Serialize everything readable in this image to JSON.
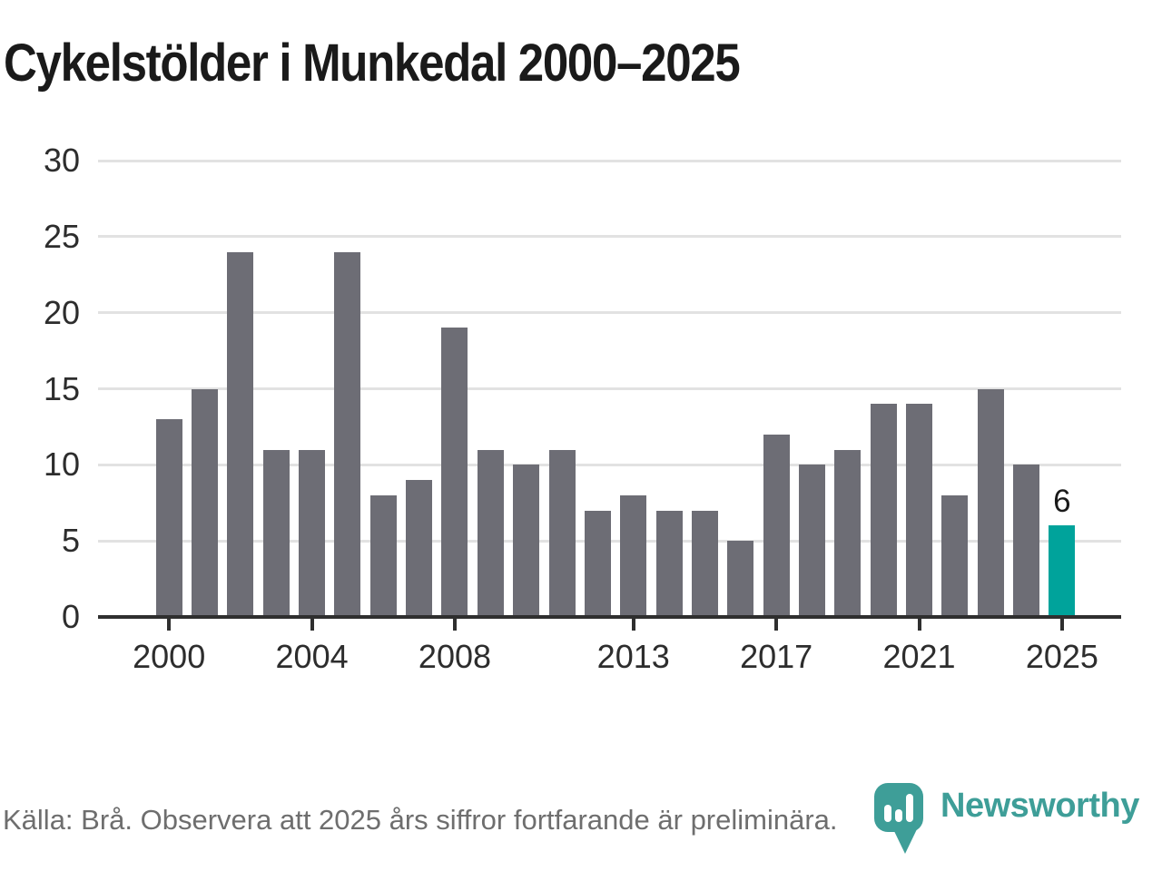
{
  "title": "Cykelstölder i Munkedal 2000–2025",
  "chart_data": {
    "type": "bar",
    "title": "Cykelstölder i Munkedal 2000–2025",
    "categories": [
      2000,
      2001,
      2002,
      2003,
      2004,
      2005,
      2006,
      2007,
      2008,
      2009,
      2010,
      2011,
      2012,
      2013,
      2014,
      2015,
      2016,
      2017,
      2018,
      2019,
      2020,
      2021,
      2022,
      2023,
      2024,
      2025
    ],
    "values": [
      13,
      15,
      24,
      11,
      11,
      24,
      8,
      9,
      19,
      11,
      10,
      11,
      7,
      8,
      7,
      7,
      5,
      12,
      10,
      11,
      14,
      14,
      8,
      15,
      10,
      6
    ],
    "xlabel": "",
    "ylabel": "",
    "ylim": [
      0,
      30
    ],
    "yticks": [
      0,
      5,
      10,
      15,
      20,
      25,
      30
    ],
    "xtick_years": [
      2000,
      2004,
      2008,
      2013,
      2017,
      2021,
      2025
    ],
    "grid": "horizontal",
    "legend": "none",
    "bar_color": "#6d6d75",
    "highlight_color": "#00a39b",
    "highlight_last": true,
    "last_value_label": "6"
  },
  "footer": {
    "source_note": "Källa: Brå. Observera att 2025 års siffror fortfarande är preliminära."
  },
  "logo": {
    "text": "Newsworthy",
    "color": "#3e9e98",
    "icon": "map-pin-bar-chart-icon"
  }
}
